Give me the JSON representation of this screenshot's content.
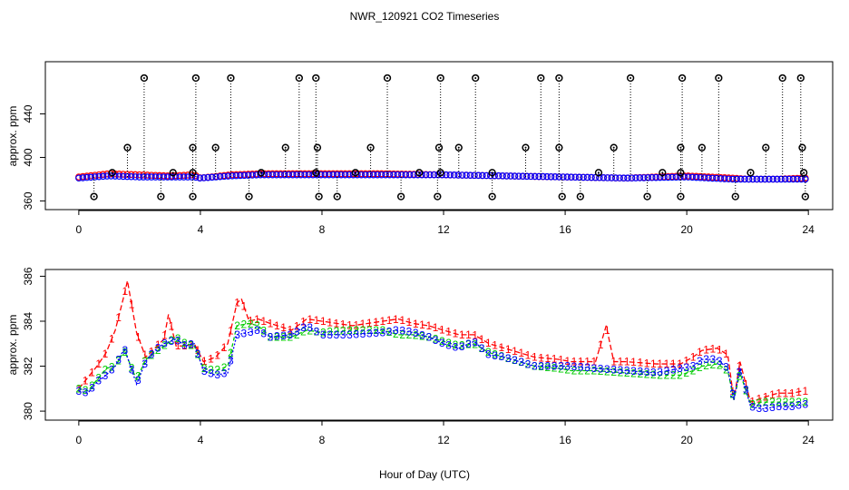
{
  "title": "NWR_120921  CO2 Timeseries",
  "xlabel": "Hour of Day (UTC)",
  "colors": {
    "series1": "#ff0000",
    "series2": "#00cc00",
    "series3": "#0000ff",
    "black": "#000000",
    "cyan": "#00cccc"
  },
  "chart_data": [
    {
      "type": "scatter",
      "name": "top-panel",
      "ylabel": "approx. ppm",
      "xlim": [
        0,
        24
      ],
      "ylim": [
        355,
        480
      ],
      "x_ticks": [
        "0",
        "4",
        "8",
        "12",
        "16",
        "20",
        "24"
      ],
      "x_tick_values": [
        0,
        4,
        8,
        12,
        16,
        20,
        24
      ],
      "y_ticks": [
        "360",
        "400",
        "440"
      ],
      "y_tick_values": [
        360,
        400,
        440
      ],
      "baseline_series": [
        {
          "name": "1",
          "color": "#ff0000",
          "x": [
            0,
            1,
            2,
            3,
            3.8,
            4,
            5,
            6,
            8,
            10,
            12,
            14,
            16,
            18,
            20,
            21.5,
            22,
            23,
            23.8
          ],
          "y": [
            382,
            385,
            384,
            383,
            384,
            381,
            384,
            385,
            385,
            385,
            384,
            383,
            382,
            381,
            383,
            381,
            380,
            380,
            381
          ]
        },
        {
          "name": "3",
          "color": "#0000ff",
          "x": [
            0,
            1,
            2,
            3,
            3.8,
            4,
            5,
            6,
            8,
            10,
            12,
            14,
            16,
            18,
            20,
            21.5,
            22,
            23,
            23.8
          ],
          "y": [
            381,
            383,
            382,
            382,
            382,
            381,
            383,
            384,
            384,
            384,
            384,
            383,
            382,
            381,
            382,
            380,
            380,
            380,
            380
          ]
        }
      ],
      "spike_points": {
        "x": [
          2.15,
          3.85,
          5.0,
          7.25,
          7.8,
          10.15,
          11.9,
          13.05,
          15.2,
          15.8,
          18.15,
          19.85,
          21.05,
          23.15,
          23.75,
          1.6,
          3.75,
          4.5,
          6.8,
          7.85,
          9.6,
          11.85,
          12.5,
          14.7,
          15.8,
          17.6,
          19.8,
          20.5,
          22.6,
          23.8,
          1.1,
          3.1,
          3.75,
          6.0,
          7.8,
          9.1,
          11.2,
          11.9,
          13.6,
          17.1,
          19.2,
          19.8,
          22.1,
          23.85,
          0.5,
          2.7,
          3.75,
          5.6,
          7.9,
          8.5,
          10.6,
          11.8,
          13.6,
          15.9,
          16.5,
          18.7,
          19.8,
          21.6,
          23.9
        ],
        "y": [
          473,
          473,
          473,
          473,
          473,
          473,
          473,
          473,
          473,
          473,
          473,
          473,
          473,
          473,
          473,
          409,
          409,
          409,
          409,
          409,
          409,
          409,
          409,
          409,
          409,
          409,
          409,
          409,
          409,
          409,
          386,
          386,
          386,
          386,
          386,
          386,
          386,
          386,
          386,
          386,
          386,
          386,
          386,
          386,
          364,
          364,
          364,
          364,
          364,
          364,
          364,
          364,
          364,
          364,
          364,
          364,
          364,
          364,
          364
        ]
      }
    },
    {
      "type": "line",
      "name": "bottom-panel",
      "ylabel": "approx. ppm",
      "xlim": [
        0,
        24
      ],
      "ylim": [
        379.6,
        386.3
      ],
      "x_ticks": [
        "0",
        "4",
        "8",
        "12",
        "16",
        "20",
        "24"
      ],
      "x_tick_values": [
        0,
        4,
        8,
        12,
        16,
        20,
        24
      ],
      "y_ticks": [
        "380",
        "382",
        "384",
        "386"
      ],
      "y_tick_values": [
        380,
        382,
        384,
        386
      ],
      "series": [
        {
          "name": "1",
          "color": "#ff0000",
          "x": [
            0,
            0.3,
            0.6,
            0.9,
            1.2,
            1.5,
            1.6,
            1.9,
            2.2,
            2.5,
            2.8,
            2.95,
            3.2,
            3.5,
            3.8,
            4.1,
            4.5,
            4.9,
            5.2,
            5.35,
            5.6,
            5.9,
            6.3,
            7.0,
            7.5,
            8.0,
            9.0,
            10.0,
            10.5,
            11.0,
            11.5,
            12.0,
            12.5,
            13.0,
            13.5,
            14.0,
            15.0,
            15.8,
            16.2,
            17.0,
            17.35,
            17.6,
            18.0,
            19.0,
            19.8,
            20.2,
            20.5,
            21.0,
            21.35,
            21.55,
            21.75,
            22.1,
            22.5,
            23.0,
            23.5,
            23.8
          ],
          "y": [
            381.0,
            381.5,
            382.0,
            382.6,
            383.6,
            385.2,
            385.8,
            383.5,
            382.4,
            382.8,
            383.2,
            384.3,
            382.9,
            382.9,
            383.0,
            382.2,
            382.4,
            383.0,
            384.8,
            385.0,
            384.0,
            384.1,
            383.9,
            383.6,
            384.1,
            384.0,
            383.8,
            384.0,
            384.1,
            383.9,
            383.8,
            383.6,
            383.4,
            383.4,
            383.0,
            382.8,
            382.4,
            382.3,
            382.2,
            382.2,
            383.8,
            382.2,
            382.2,
            382.1,
            382.1,
            382.4,
            382.7,
            382.8,
            382.5,
            380.5,
            382.2,
            380.4,
            380.6,
            380.8,
            380.8,
            380.9
          ]
        },
        {
          "name": "2",
          "color": "#00cc00",
          "x": [
            0,
            0.3,
            0.6,
            0.9,
            1.2,
            1.5,
            1.9,
            2.2,
            2.5,
            2.8,
            3.2,
            3.5,
            3.8,
            4.1,
            4.5,
            4.9,
            5.2,
            5.6,
            5.9,
            6.3,
            7.0,
            7.5,
            8.0,
            9.0,
            10.0,
            10.5,
            11.0,
            11.5,
            12.0,
            12.5,
            13.0,
            13.5,
            14.0,
            15.0,
            15.8,
            16.2,
            17.0,
            18.0,
            19.0,
            19.8,
            20.2,
            20.5,
            21.0,
            21.35,
            21.55,
            21.75,
            22.1,
            22.5,
            23.0,
            23.5,
            23.8
          ],
          "y": [
            381.0,
            380.9,
            381.4,
            381.9,
            382.0,
            382.7,
            381.4,
            382.3,
            382.6,
            382.9,
            383.3,
            383.0,
            382.9,
            381.9,
            381.8,
            382.0,
            383.8,
            383.9,
            383.8,
            383.3,
            383.3,
            383.6,
            383.5,
            383.6,
            383.6,
            383.4,
            383.4,
            383.3,
            383.1,
            382.9,
            383.0,
            382.6,
            382.4,
            382.0,
            381.9,
            381.8,
            381.8,
            381.7,
            381.6,
            381.6,
            381.8,
            382.0,
            382.1,
            381.8,
            380.5,
            381.7,
            380.3,
            380.4,
            380.4,
            380.4,
            380.4
          ]
        },
        {
          "name": "3",
          "color": "#0000ff",
          "x": [
            0,
            0.3,
            0.6,
            0.9,
            1.2,
            1.5,
            1.9,
            2.2,
            2.5,
            2.8,
            3.2,
            3.5,
            3.8,
            4.1,
            4.5,
            4.9,
            5.2,
            5.6,
            5.9,
            6.3,
            7.0,
            7.5,
            8.0,
            9.0,
            10.0,
            10.5,
            11.0,
            11.5,
            12.0,
            12.5,
            13.0,
            13.5,
            14.0,
            15.0,
            15.8,
            16.2,
            17.0,
            18.0,
            19.0,
            19.8,
            20.2,
            20.5,
            21.0,
            21.35,
            21.55,
            21.75,
            22.1,
            22.5,
            23.0,
            23.5,
            23.8
          ],
          "y": [
            380.9,
            380.8,
            381.3,
            381.6,
            382.0,
            382.8,
            381.2,
            382.2,
            382.7,
            383.0,
            383.2,
            382.9,
            383.0,
            381.8,
            381.6,
            381.7,
            383.4,
            383.5,
            383.6,
            383.3,
            383.4,
            383.8,
            383.4,
            383.4,
            383.5,
            383.6,
            383.5,
            383.3,
            383.0,
            382.8,
            383.1,
            382.5,
            382.4,
            382.0,
            382.0,
            382.0,
            381.9,
            381.8,
            381.7,
            381.9,
            382.0,
            382.3,
            382.3,
            381.9,
            380.5,
            381.9,
            380.2,
            380.1,
            380.2,
            380.2,
            380.3
          ]
        }
      ]
    }
  ]
}
